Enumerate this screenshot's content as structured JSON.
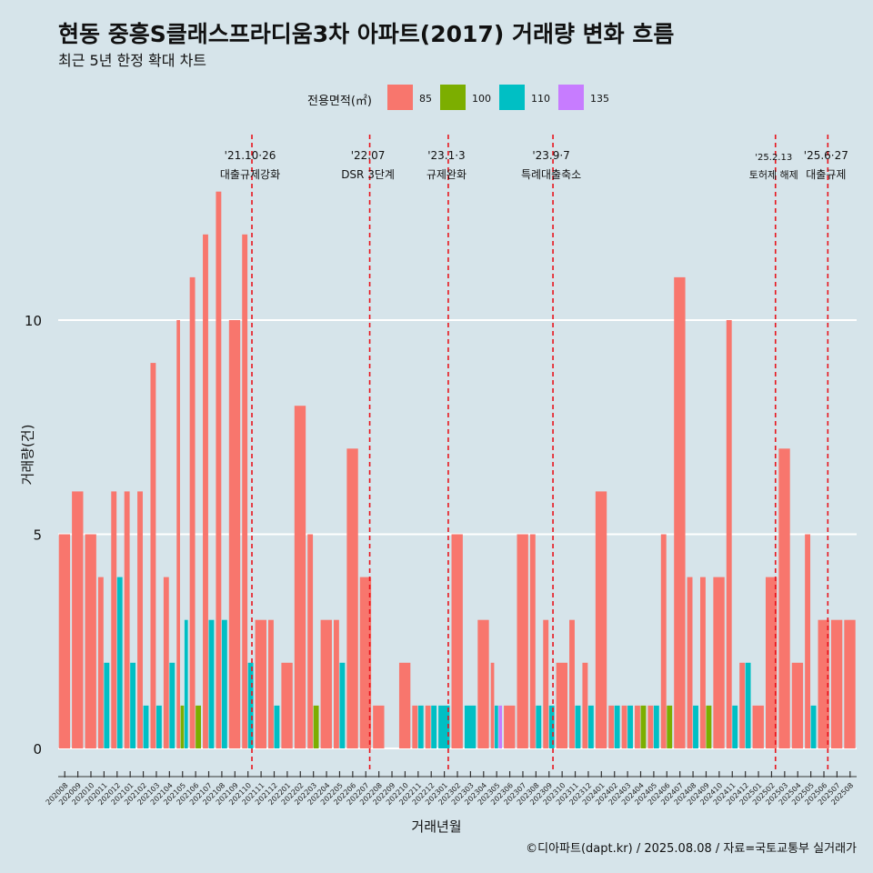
{
  "header": {
    "title": "현동 중흥S클래스프라디움3차 아파트(2017) 거래량 변화 흐름",
    "subtitle": "최근 5년 한정 확대 차트"
  },
  "legend": {
    "title": "전용면적(㎡)",
    "items": [
      {
        "label": "85",
        "color": "#f8766d"
      },
      {
        "label": "100",
        "color": "#7cae00"
      },
      {
        "label": "110",
        "color": "#00bfc4"
      },
      {
        "label": "135",
        "color": "#c77cff"
      }
    ]
  },
  "caption": "©디아파트(dapt.kr) / 2025.08.08 / 자료=국토교통부 실거래가",
  "chart_data": {
    "type": "bar",
    "xlabel": "거래년월",
    "ylabel": "거래량(건)",
    "ylim": [
      -0.5,
      14
    ],
    "yticks": [
      0,
      5,
      10
    ],
    "grid": true,
    "legend_position": "top",
    "categories": [
      "202008",
      "202009",
      "202010",
      "202011",
      "202012",
      "202101",
      "202102",
      "202103",
      "202104",
      "202105",
      "202106",
      "202107",
      "202108",
      "202109",
      "202110",
      "202111",
      "202112",
      "202201",
      "202202",
      "202203",
      "202204",
      "202205",
      "202206",
      "202207",
      "202208",
      "202209",
      "202210",
      "202211",
      "202212",
      "202301",
      "202302",
      "202303",
      "202304",
      "202305",
      "202306",
      "202307",
      "202308",
      "202309",
      "202310",
      "202311",
      "202312",
      "202401",
      "202402",
      "202403",
      "202404",
      "202405",
      "202406",
      "202407",
      "202408",
      "202409",
      "202410",
      "202411",
      "202412",
      "202501",
      "202502",
      "202503",
      "202504",
      "202505",
      "202506",
      "202507",
      "202508"
    ],
    "series": [
      {
        "name": "85",
        "color": "#f8766d",
        "values": [
          5,
          6,
          5,
          4,
          6,
          6,
          6,
          9,
          4,
          10,
          11,
          12,
          13,
          10,
          12,
          3,
          3,
          2,
          8,
          5,
          3,
          3,
          7,
          4,
          1,
          0,
          2,
          1,
          1,
          0,
          5,
          0,
          3,
          2,
          1,
          5,
          5,
          3,
          2,
          3,
          2,
          6,
          1,
          1,
          1,
          1,
          5,
          11,
          4,
          4,
          4,
          10,
          2,
          1,
          4,
          7,
          2,
          5,
          3,
          3,
          3
        ]
      },
      {
        "name": "100",
        "color": "#7cae00",
        "values": [
          0,
          0,
          0,
          0,
          0,
          0,
          0,
          0,
          0,
          1,
          1,
          0,
          0,
          0,
          0,
          0,
          0,
          0,
          0,
          1,
          0,
          0,
          0,
          0,
          0,
          0,
          0,
          0,
          0,
          0,
          0,
          0,
          0,
          0,
          0,
          0,
          0,
          0,
          0,
          0,
          0,
          0,
          0,
          0,
          1,
          0,
          1,
          0,
          0,
          1,
          0,
          0,
          0,
          0,
          0,
          0,
          0,
          0,
          0,
          0,
          0
        ]
      },
      {
        "name": "110",
        "color": "#00bfc4",
        "values": [
          0,
          0,
          0,
          2,
          4,
          2,
          1,
          1,
          2,
          3,
          0,
          3,
          3,
          0,
          2,
          0,
          1,
          0,
          0,
          0,
          0,
          2,
          0,
          0,
          0,
          0,
          0,
          1,
          1,
          1,
          0,
          1,
          0,
          1,
          0,
          0,
          1,
          1,
          0,
          1,
          1,
          0,
          1,
          1,
          0,
          1,
          0,
          0,
          1,
          0,
          0,
          1,
          2,
          0,
          0,
          0,
          0,
          1,
          0,
          0,
          0
        ]
      },
      {
        "name": "135",
        "color": "#c77cff",
        "values": [
          0,
          0,
          0,
          0,
          0,
          0,
          0,
          0,
          0,
          0,
          0,
          0,
          0,
          0,
          0,
          0,
          0,
          0,
          0,
          0,
          0,
          0,
          0,
          0,
          0,
          0,
          0,
          0,
          0,
          0,
          0,
          0,
          0,
          1,
          0,
          0,
          0,
          0,
          0,
          0,
          0,
          0,
          0,
          0,
          0,
          0,
          0,
          0,
          0,
          0,
          0,
          0,
          0,
          0,
          0,
          0,
          0,
          0,
          0,
          0,
          0
        ]
      }
    ],
    "annotations": [
      {
        "date": "'21.10·26",
        "text": "대출규제강화",
        "x": "202110"
      },
      {
        "date": "'22.07",
        "text": "DSR 3단계",
        "x": "202207"
      },
      {
        "date": "'23.1·3",
        "text": "규제완화",
        "x": "202301"
      },
      {
        "date": "'23.9·7",
        "text": "특례대출축소",
        "x": "202309"
      },
      {
        "date": "'25.2.13",
        "text": "토허제 해제",
        "x": "202502"
      },
      {
        "date": "'25.6·27",
        "text": "대출규제",
        "x": "202506"
      }
    ]
  }
}
